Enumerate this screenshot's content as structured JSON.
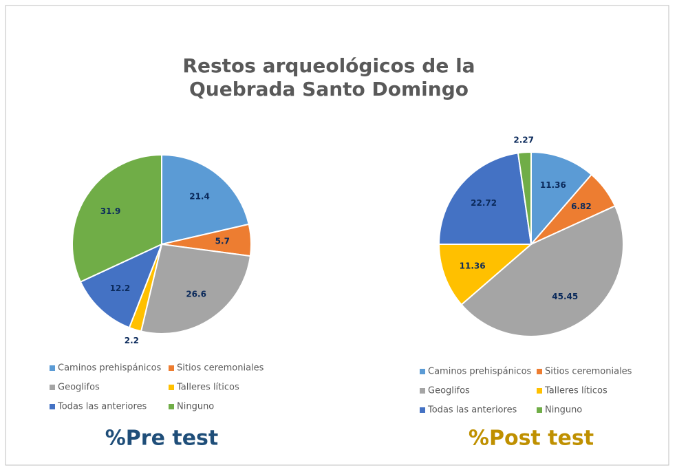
{
  "title": [
    "Restos arqueológicos de la",
    "Quebrada Santo Domingo"
  ],
  "chart_data": [
    {
      "type": "pie",
      "title": "%Pre test",
      "title_color": "#1f4e79",
      "categories": [
        "Caminos prehispánicos",
        "Sitios ceremoniales",
        "Geoglifos",
        "Talleres líticos",
        "Todas las anteriores",
        "Ninguno"
      ],
      "values": [
        21.4,
        5.7,
        26.6,
        2.2,
        12.2,
        31.9
      ],
      "colors": [
        "#5b9bd5",
        "#ed7d31",
        "#a5a5a5",
        "#ffc000",
        "#4472c4",
        "#70ad47"
      ]
    },
    {
      "type": "pie",
      "title": "%Post test",
      "title_color": "#bf9000",
      "categories": [
        "Caminos prehispánicos",
        "Sitios ceremoniales",
        "Geoglifos",
        "Talleres líticos",
        "Todas las anteriores",
        "Ninguno"
      ],
      "values": [
        11.36,
        6.82,
        45.45,
        11.36,
        22.72,
        2.27
      ],
      "colors": [
        "#5b9bd5",
        "#ed7d31",
        "#a5a5a5",
        "#ffc000",
        "#4472c4",
        "#70ad47"
      ]
    }
  ]
}
